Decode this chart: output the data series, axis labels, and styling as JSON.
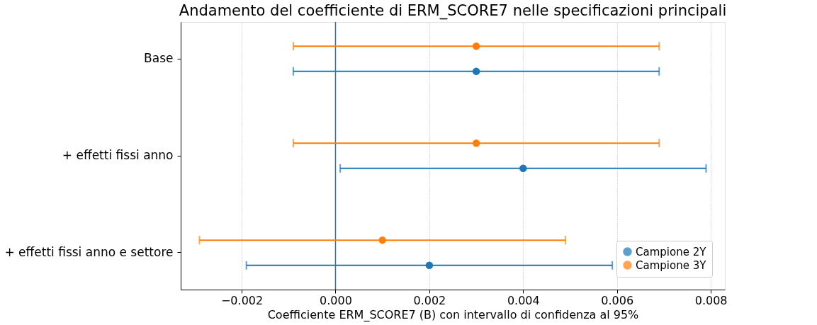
{
  "chart_data": {
    "type": "scatter",
    "orientation": "horizontal",
    "title": "Andamento del coefficiente di ERM_SCORE7 nelle specificazioni principali",
    "xlabel": "Coefficiente ERM_SCORE7 (B) con intervallo di confidenza al 95%",
    "categories": [
      "Base",
      "+ effetti fissi anno",
      "+ effetti fissi anno e settore"
    ],
    "series": [
      {
        "name": "Campione 2Y",
        "color": "#1f77b4",
        "values": [
          0.003,
          0.004,
          0.002
        ],
        "errors": [
          0.0039,
          0.0039,
          0.0039
        ]
      },
      {
        "name": "Campione 3Y",
        "color": "#ff7f0e",
        "values": [
          0.003,
          0.003,
          0.001
        ],
        "errors": [
          0.0039,
          0.0039,
          0.0039
        ]
      }
    ],
    "xlim": [
      -0.0033,
      0.0083
    ],
    "xticks": [
      {
        "value": -0.002,
        "label": "−0.002"
      },
      {
        "value": 0,
        "label": "0.000"
      },
      {
        "value": 0.002,
        "label": "0.002"
      },
      {
        "value": 0.004,
        "label": "0.004"
      },
      {
        "value": 0.006,
        "label": "0.006"
      },
      {
        "value": 0.008,
        "label": "0.008"
      }
    ],
    "ref_lines": [
      {
        "axis": "x",
        "value": 0,
        "color": "#1f77b4"
      }
    ],
    "grid": "x",
    "legend": "bottom right",
    "marker": "circle"
  }
}
